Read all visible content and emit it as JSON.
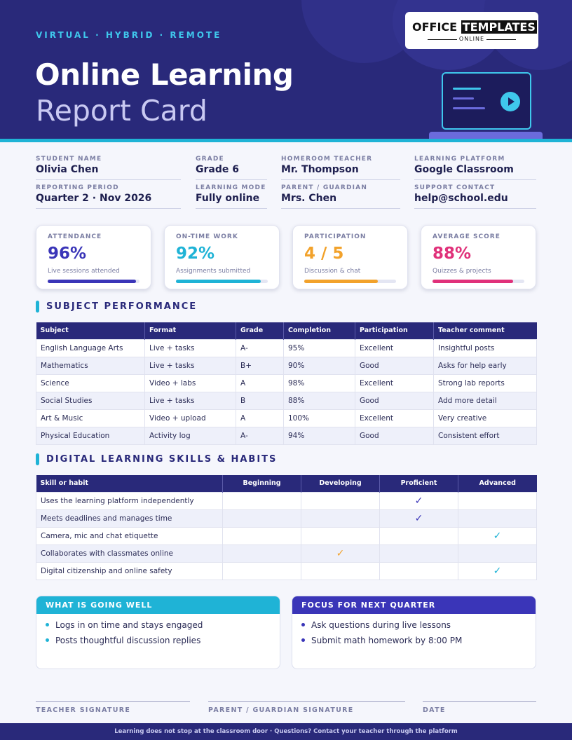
{
  "header": {
    "tagline": "VIRTUAL · HYBRID · REMOTE",
    "title_line1": "Online Learning",
    "title_line2": "Report Card",
    "logo_word1": "OFFICE",
    "logo_word2": "TEMPLATES",
    "logo_sub": "ONLINE",
    "colors": {
      "navy": "#29297a",
      "cyan": "#1fb3d6"
    }
  },
  "student_info": [
    {
      "label": "STUDENT NAME",
      "value": "Olivia Chen"
    },
    {
      "label": "GRADE",
      "value": "Grade 6"
    },
    {
      "label": "HOMEROOM TEACHER",
      "value": "Mr. Thompson"
    },
    {
      "label": "LEARNING PLATFORM",
      "value": "Google Classroom"
    },
    {
      "label": "REPORTING PERIOD",
      "value": "Quarter 2 · Nov 2026"
    },
    {
      "label": "LEARNING MODE",
      "value": "Fully online"
    },
    {
      "label": "PARENT / GUARDIAN",
      "value": "Mrs. Chen"
    },
    {
      "label": "SUPPORT CONTACT",
      "value": "help@school.edu"
    }
  ],
  "stats": [
    {
      "label": "ATTENDANCE",
      "value": "96%",
      "sub": "Live sessions attended",
      "progress": 0.96,
      "color": "#3a35b8"
    },
    {
      "label": "ON-TIME WORK",
      "value": "92%",
      "sub": "Assignments submitted",
      "progress": 0.92,
      "color": "#1fb3d6"
    },
    {
      "label": "PARTICIPATION",
      "value": "4 / 5",
      "sub": "Discussion & chat",
      "progress": 0.8,
      "color": "#f2a22b"
    },
    {
      "label": "AVERAGE SCORE",
      "value": "88%",
      "sub": "Quizzes & projects",
      "progress": 0.88,
      "color": "#e0317a"
    }
  ],
  "subject_performance": {
    "heading": "SUBJECT PERFORMANCE",
    "columns": [
      "Subject",
      "Format",
      "Grade",
      "Completion",
      "Participation",
      "Teacher comment"
    ],
    "rows": [
      [
        "English Language Arts",
        "Live + tasks",
        "A-",
        "95%",
        "Excellent",
        "Insightful posts"
      ],
      [
        "Mathematics",
        "Live + tasks",
        "B+",
        "90%",
        "Good",
        "Asks for help early"
      ],
      [
        "Science",
        "Video + labs",
        "A",
        "98%",
        "Excellent",
        "Strong lab reports"
      ],
      [
        "Social Studies",
        "Live + tasks",
        "B",
        "88%",
        "Good",
        "Add more detail"
      ],
      [
        "Art & Music",
        "Video + upload",
        "A",
        "100%",
        "Excellent",
        "Very creative"
      ],
      [
        "Physical Education",
        "Activity log",
        "A-",
        "94%",
        "Good",
        "Consistent effort"
      ]
    ]
  },
  "skills": {
    "heading": "DIGITAL LEARNING SKILLS & HABITS",
    "columns": [
      "Skill or habit",
      "Beginning",
      "Developing",
      "Proficient",
      "Advanced"
    ],
    "check_glyph": "✓",
    "rows": [
      {
        "skill": "Uses the learning platform independently",
        "level": "Proficient"
      },
      {
        "skill": "Meets deadlines and manages time",
        "level": "Proficient"
      },
      {
        "skill": "Camera, mic and chat etiquette",
        "level": "Advanced"
      },
      {
        "skill": "Collaborates with classmates online",
        "level": "Developing"
      },
      {
        "skill": "Digital citizenship and online safety",
        "level": "Advanced"
      }
    ],
    "level_colors": {
      "Developing": "#f2a22b",
      "Proficient": "#3a35b8",
      "Advanced": "#1fb3d6"
    }
  },
  "going_well": {
    "heading": "WHAT IS GOING WELL",
    "color": "#1fb3d6",
    "items": [
      "Logs in on time and stays engaged",
      "Posts thoughtful discussion replies"
    ]
  },
  "focus": {
    "heading": "FOCUS FOR NEXT QUARTER",
    "color": "#3a35b8",
    "items": [
      "Ask questions during live lessons",
      "Submit math homework by 8:00 PM"
    ]
  },
  "signatures": {
    "teacher": "TEACHER SIGNATURE",
    "parent": "PARENT / GUARDIAN SIGNATURE",
    "date": "DATE"
  },
  "footer": "Learning does not stop at the classroom door · Questions? Contact your teacher through the platform"
}
